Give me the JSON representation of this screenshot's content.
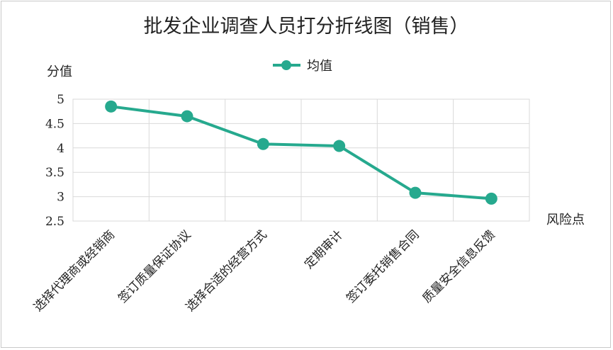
{
  "chart_data": {
    "type": "line",
    "title": "批发企业调查人员打分折线图（销售）",
    "ylabel": "分值",
    "xlabel": "风险点",
    "categories": [
      "选择代理商或经销商",
      "签订质量保证协议",
      "选择合适的经营方式",
      "定期审计",
      "签订委托销售合同",
      "质量安全信息反馈"
    ],
    "series": [
      {
        "name": "均值",
        "values": [
          4.85,
          4.65,
          4.08,
          4.04,
          3.08,
          2.96
        ],
        "color": "#26a98e"
      }
    ],
    "ylim": [
      2.5,
      5
    ],
    "yticks": [
      "2.5",
      "3",
      "3.5",
      "4",
      "4.5",
      "5"
    ],
    "grid": true,
    "legend": "top-center"
  }
}
